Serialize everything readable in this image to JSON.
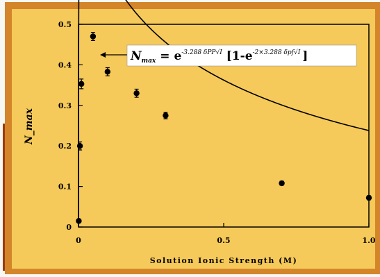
{
  "chart_data": {
    "type": "scatter",
    "title": "",
    "xlabel": "Solution Ionic Strength (M)",
    "ylabel": "N_max",
    "xlim": [
      0,
      1.0
    ],
    "ylim": [
      0,
      0.5
    ],
    "x_ticks": [
      "0",
      "0.5",
      "1.0"
    ],
    "y_ticks": [
      "0",
      "0.1",
      "0.2",
      "0.3",
      "0.4",
      "0.5"
    ],
    "grid": false,
    "background_color": "#f5c95a",
    "frame_color": "#d4852a",
    "series": [
      {
        "kind": "points",
        "points": [
          {
            "x": 0.001,
            "y": 0.015,
            "err": 0.004
          },
          {
            "x": 0.005,
            "y": 0.2,
            "err": 0.01
          },
          {
            "x": 0.01,
            "y": 0.353,
            "err": 0.012
          },
          {
            "x": 0.05,
            "y": 0.47,
            "err": 0.01
          },
          {
            "x": 0.1,
            "y": 0.383,
            "err": 0.01
          },
          {
            "x": 0.2,
            "y": 0.33,
            "err": 0.01
          },
          {
            "x": 0.3,
            "y": 0.275,
            "err": 0.008
          },
          {
            "x": 0.7,
            "y": 0.108,
            "err": 0.005
          },
          {
            "x": 1.0,
            "y": 0.072,
            "err": 0.005
          }
        ]
      },
      {
        "kind": "fit_curve",
        "equation": {
          "lhs": "N",
          "lhs_sub": "max",
          "rhs": "= e",
          "sup1": "-3.288 δPP√I",
          "bracket": "[1-e",
          "sup2": "-2×3.288 δpf√I",
          "close": "]"
        }
      }
    ]
  }
}
